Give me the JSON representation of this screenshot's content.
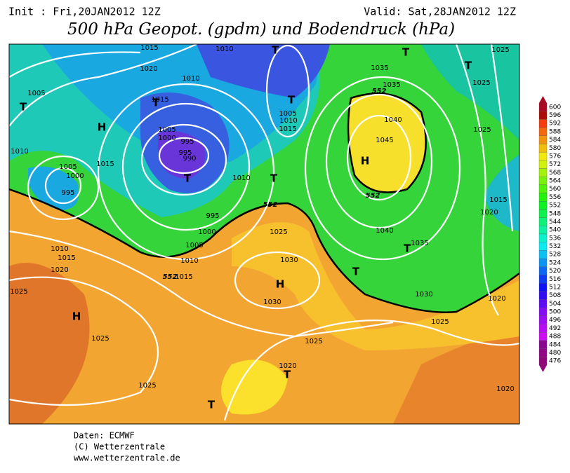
{
  "header": {
    "init": "Init : Fri,20JAN2012 12Z",
    "valid": "Valid: Sat,28JAN2012 12Z",
    "title": "500 hPa Geopot. (gpdm) und Bodendruck (hPa)"
  },
  "colorbar": {
    "levels": [
      "600",
      "596",
      "592",
      "588",
      "584",
      "580",
      "576",
      "572",
      "568",
      "564",
      "560",
      "556",
      "552",
      "548",
      "544",
      "540",
      "536",
      "532",
      "528",
      "524",
      "520",
      "516",
      "512",
      "508",
      "504",
      "500",
      "496",
      "492",
      "488",
      "484",
      "480",
      "476"
    ]
  },
  "map": {
    "isobar_labels": [
      "1015",
      "1020",
      "1005",
      "1010",
      "1015",
      "1005",
      "1000",
      "995",
      "995",
      "990",
      "1010",
      "1005",
      "1000",
      "995",
      "1015",
      "1010",
      "995",
      "1000",
      "1005",
      "1010",
      "1015",
      "1010",
      "1015",
      "1020",
      "1025",
      "1025",
      "1025",
      "1030",
      "1030",
      "1025",
      "1025",
      "1020",
      "1020",
      "1020",
      "1025",
      "1030",
      "1035",
      "1040",
      "1045",
      "1040",
      "1035",
      "1035",
      "1025",
      "1025",
      "1025",
      "1020",
      "1015",
      "1005",
      "1010",
      "1015",
      "1010"
    ],
    "geopot_labels": [
      "552",
      "552",
      "552",
      "552"
    ],
    "systems": [
      "T",
      "H",
      "T",
      "T",
      "T",
      "T",
      "T",
      "T",
      "T",
      "H",
      "T",
      "T",
      "H",
      "H",
      "T",
      "T"
    ]
  },
  "footer": {
    "source": "Daten: ECMWF",
    "copyright": "(C) Wetterzentrale",
    "url": "www.wetterzentrale.de"
  }
}
